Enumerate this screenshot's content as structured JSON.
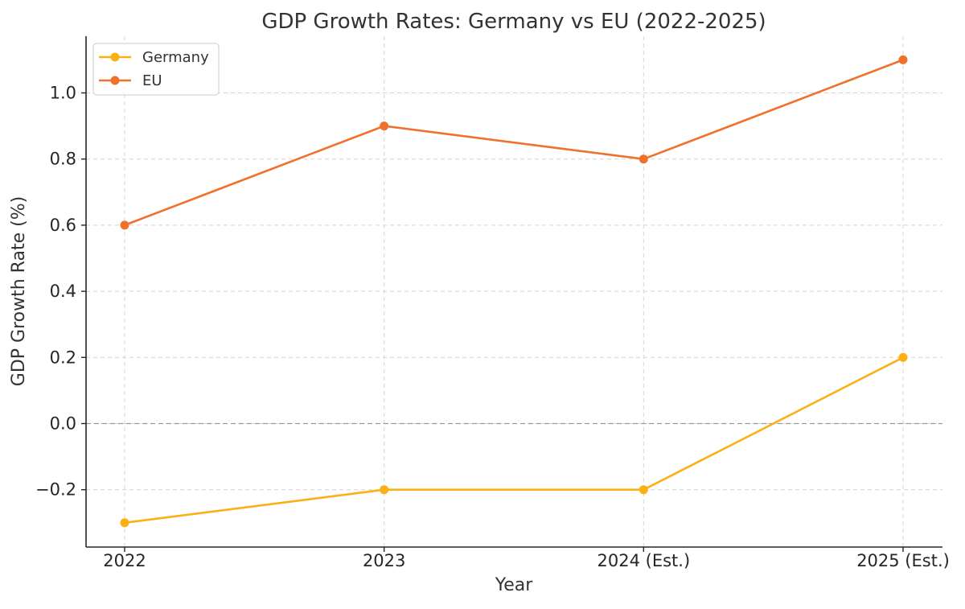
{
  "chart_data": {
    "type": "line",
    "title": "GDP Growth Rates: Germany vs EU (2022-2025)",
    "xlabel": "Year",
    "ylabel": "GDP Growth Rate (%)",
    "categories": [
      "2022",
      "2023",
      "2024 (Est.)",
      "2025 (Est.)"
    ],
    "series": [
      {
        "name": "Germany",
        "color": "#FBB116",
        "values": [
          -0.3,
          -0.2,
          -0.2,
          0.2
        ]
      },
      {
        "name": "EU",
        "color": "#F0712C",
        "values": [
          0.6,
          0.9,
          0.8,
          1.1
        ]
      }
    ],
    "ylim": [
      -0.37,
      1.17
    ],
    "yticks": [
      -0.2,
      0.0,
      0.2,
      0.4,
      0.6,
      0.8,
      1.0
    ],
    "ytick_labels": [
      "−0.2",
      "0.0",
      "0.2",
      "0.4",
      "0.6",
      "0.8",
      "1.0"
    ],
    "grid": true,
    "zero_line": true,
    "legend_position": "top-left"
  }
}
